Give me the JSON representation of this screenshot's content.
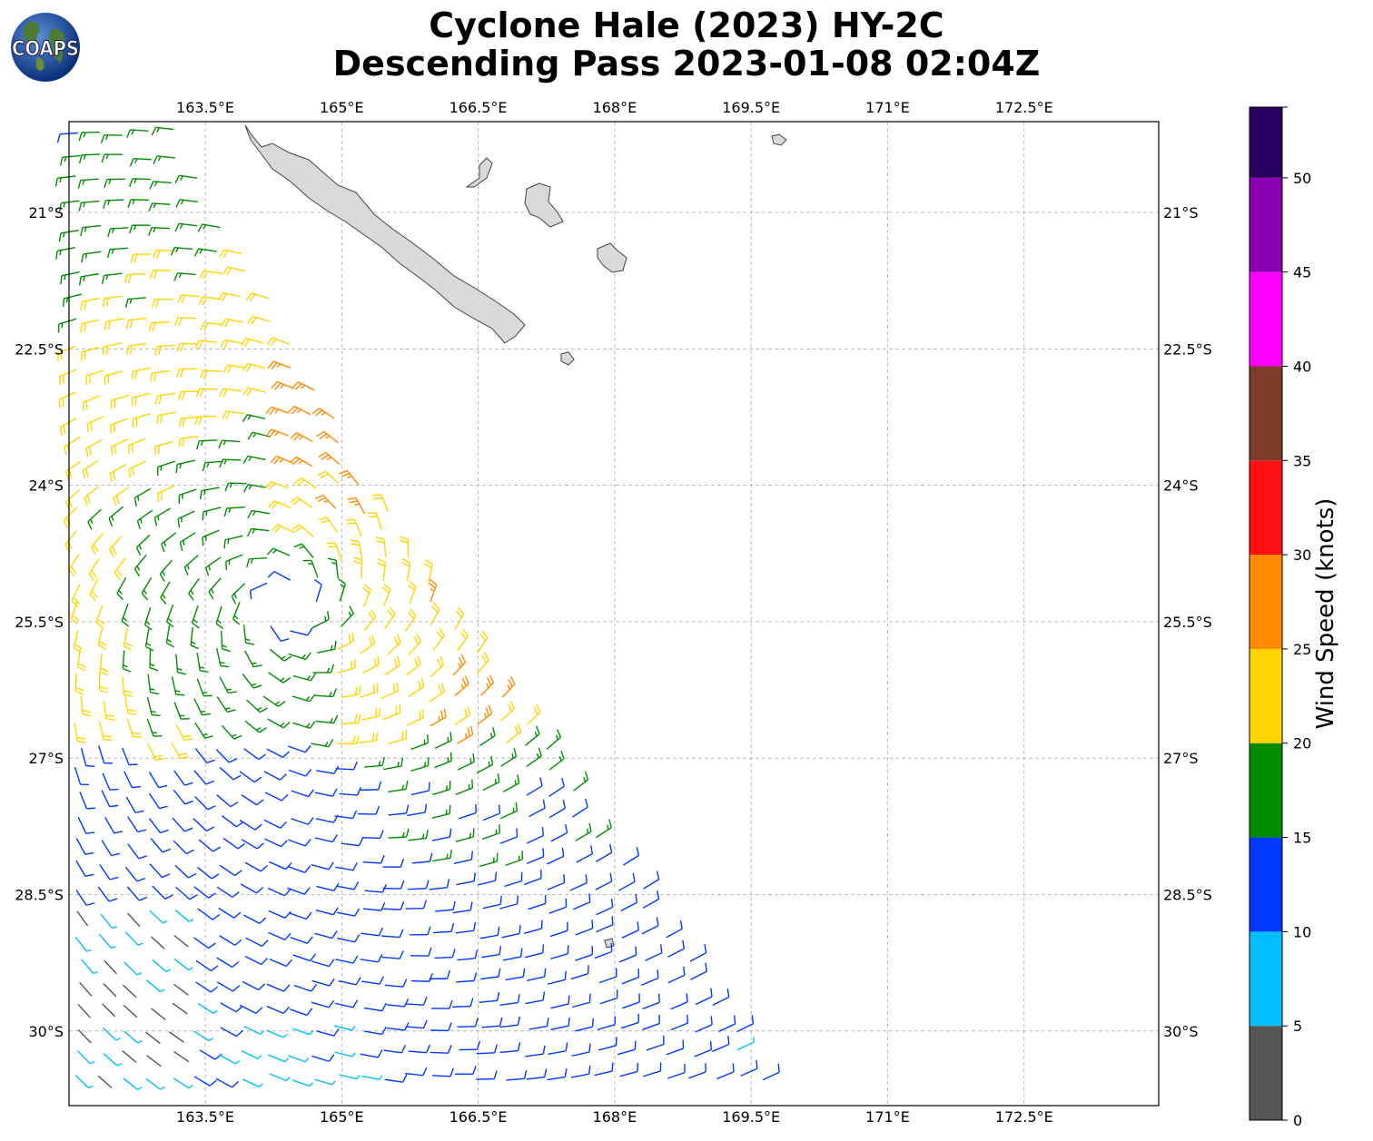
{
  "title": {
    "line1": "Cyclone Hale (2023) HY-2C",
    "line2": "Descending Pass 2023-01-08 02:04Z"
  },
  "logo": {
    "text": "COAPS",
    "icon": "globe-logo-icon"
  },
  "map": {
    "lon_range": [
      162.0,
      174.0
    ],
    "lat_range": [
      -31.8,
      -21.0
    ],
    "lat_top_extra": 1.0,
    "grid": "dashed",
    "lon_ticks": [
      "163.5°E",
      "165°E",
      "166.5°E",
      "168°E",
      "169.5°E",
      "171°E",
      "172.5°E"
    ],
    "lat_ticks": [
      "21°S",
      "22.5°S",
      "24°S",
      "25.5°S",
      "27°S",
      "28.5°S",
      "30°S"
    ],
    "land_color": "#d9d9d9",
    "coast_color": "#444444"
  },
  "chart_data": {
    "type": "wind-barbs",
    "center": {
      "lon": 163.1,
      "lat": -24.9
    },
    "units": "knots",
    "colorbar": {
      "label": "Wind Speed (knots)",
      "ticks": [
        "0",
        "5",
        "10",
        "15",
        "20",
        "25",
        "30",
        "35",
        "40",
        "45",
        "50"
      ],
      "bins": [
        {
          "min": 0,
          "max": 5,
          "color": "#555555"
        },
        {
          "min": 5,
          "max": 10,
          "color": "#00bfff"
        },
        {
          "min": 10,
          "max": 15,
          "color": "#0038ff"
        },
        {
          "min": 15,
          "max": 20,
          "color": "#008c00"
        },
        {
          "min": 20,
          "max": 25,
          "color": "#ffd400"
        },
        {
          "min": 25,
          "max": 30,
          "color": "#ff8a00"
        },
        {
          "min": 30,
          "max": 35,
          "color": "#ff1010"
        },
        {
          "min": 35,
          "max": 40,
          "color": "#7f3b2a"
        },
        {
          "min": 40,
          "max": 45,
          "color": "#ff00ff"
        },
        {
          "min": 45,
          "max": 50,
          "color": "#8a00b0"
        },
        {
          "min": 50,
          "max": 55,
          "color": "#2a0060"
        }
      ]
    }
  }
}
